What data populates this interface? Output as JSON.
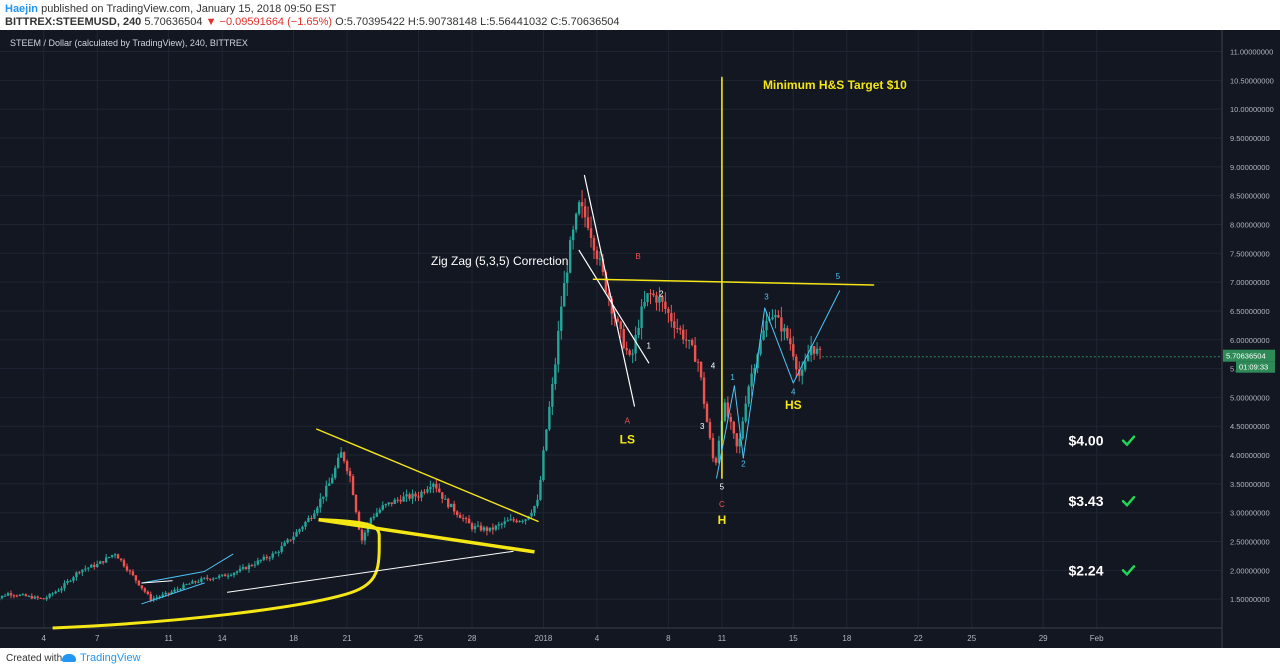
{
  "header": {
    "author": "Haejin",
    "published": "published on TradingView.com, January 15, 2018 09:50 EST",
    "symbol": "BITTREX:STEEMUSD, 240",
    "price": "5.70636504",
    "change": "−0.09591664 (−1.65%)",
    "ohlc": "O:5.70395422 H:5.90738148 L:5.56441032 C:5.70636504"
  },
  "chart_title": "STEEM / Dollar (calculated by TradingView), 240, BITTREX",
  "footer": {
    "created_with": "Created with",
    "brand": "TradingView"
  },
  "colors": {
    "background": "#131722",
    "up": "#26a69a",
    "down": "#ef5350",
    "yellow": "#f5e615",
    "cyan": "#4fc3f7",
    "white": "#ffffff",
    "check": "#1fd655"
  },
  "chart_data": {
    "type": "candlestick",
    "title": "STEEM / Dollar (calculated by TradingView), 240, BITTREX",
    "ylim": [
      1.0,
      11.2
    ],
    "y_ticks": [
      "11.00000000",
      "10.50000000",
      "10.00000000",
      "9.50000000",
      "9.00000000",
      "8.50000000",
      "8.00000000",
      "7.50000000",
      "7.00000000",
      "6.50000000",
      "6.00000000",
      "5.50000000",
      "5.00000000",
      "4.50000000",
      "4.00000000",
      "3.50000000",
      "3.00000000",
      "2.50000000",
      "2.00000000",
      "1.50000000"
    ],
    "y_tick_values": [
      11.0,
      10.5,
      10.0,
      9.5,
      9.0,
      8.5,
      8.0,
      7.5,
      7.0,
      6.5,
      6.0,
      5.5,
      5.0,
      4.5,
      4.0,
      3.5,
      3.0,
      2.5,
      2.0,
      1.5
    ],
    "x_ticks": [
      "4",
      "7",
      "11",
      "14",
      "18",
      "21",
      "25",
      "28",
      "2018",
      "4",
      "8",
      "11",
      "15",
      "18",
      "22",
      "25",
      "29",
      "Feb"
    ],
    "x_tick_days": [
      4,
      7,
      11,
      14,
      18,
      21,
      25,
      28,
      32,
      35,
      39,
      42,
      46,
      49,
      53,
      56,
      60,
      63
    ],
    "last_price": "5.70636504",
    "countdown": "01:09:33",
    "price_path": [
      [
        1,
        1.45
      ],
      [
        2,
        1.6
      ],
      [
        3,
        1.55
      ],
      [
        4,
        1.5
      ],
      [
        5,
        1.7
      ],
      [
        6,
        2.0
      ],
      [
        7,
        2.1
      ],
      [
        8,
        2.3
      ],
      [
        9,
        1.9
      ],
      [
        10,
        1.5
      ],
      [
        11,
        1.6
      ],
      [
        12,
        1.75
      ],
      [
        13,
        1.85
      ],
      [
        14,
        1.9
      ],
      [
        15,
        2.0
      ],
      [
        16,
        2.15
      ],
      [
        17,
        2.3
      ],
      [
        18,
        2.6
      ],
      [
        19,
        2.95
      ],
      [
        20,
        3.5
      ],
      [
        20.7,
        4.05
      ],
      [
        21.2,
        3.6
      ],
      [
        21.8,
        2.5
      ],
      [
        22.3,
        2.9
      ],
      [
        23,
        3.1
      ],
      [
        24,
        3.25
      ],
      [
        25,
        3.3
      ],
      [
        25.8,
        3.55
      ],
      [
        26.5,
        3.2
      ],
      [
        27,
        3.05
      ],
      [
        28,
        2.75
      ],
      [
        29,
        2.7
      ],
      [
        30,
        2.85
      ],
      [
        31,
        2.9
      ],
      [
        31.7,
        3.2
      ],
      [
        32.1,
        4.3
      ],
      [
        32.6,
        5.4
      ],
      [
        33,
        6.6
      ],
      [
        33.5,
        7.6
      ],
      [
        34,
        8.3
      ],
      [
        34.5,
        8.05
      ],
      [
        35,
        7.5
      ],
      [
        35.6,
        6.8
      ],
      [
        36.2,
        6.2
      ],
      [
        36.9,
        5.6
      ],
      [
        37.4,
        6.4
      ],
      [
        37.9,
        6.8
      ],
      [
        38.5,
        6.7
      ],
      [
        39.2,
        6.35
      ],
      [
        40,
        6.0
      ],
      [
        40.7,
        5.6
      ],
      [
        41.1,
        4.7
      ],
      [
        41.6,
        3.75
      ],
      [
        42.1,
        4.9
      ],
      [
        42.5,
        4.5
      ],
      [
        42.9,
        4.05
      ],
      [
        43.4,
        5.1
      ],
      [
        44,
        5.8
      ],
      [
        44.7,
        6.5
      ],
      [
        45.3,
        6.25
      ],
      [
        45.9,
        5.9
      ],
      [
        46.4,
        5.3
      ],
      [
        47,
        5.9
      ],
      [
        47.6,
        5.7
      ]
    ],
    "annotations": {
      "target_text": "Minimum H&S Target $10",
      "zigzag_text": "Zig Zag (5,3,5) Correction",
      "labels": [
        {
          "text": "B",
          "day": 37.3,
          "price": 7.4,
          "color": "down"
        },
        {
          "text": "A",
          "day": 36.7,
          "price": 4.55,
          "color": "down"
        },
        {
          "text": "LS",
          "day": 36.7,
          "price": 4.2,
          "color": "yellow",
          "bold": true
        },
        {
          "text": "1",
          "day": 37.9,
          "price": 5.85,
          "color": "white"
        },
        {
          "text": "2",
          "day": 38.6,
          "price": 6.75,
          "color": "white"
        },
        {
          "text": "3",
          "day": 40.9,
          "price": 4.45,
          "color": "white"
        },
        {
          "text": "4",
          "day": 41.5,
          "price": 5.5,
          "color": "white"
        },
        {
          "text": "5",
          "day": 42.0,
          "price": 3.4,
          "color": "white"
        },
        {
          "text": "C",
          "day": 42.0,
          "price": 3.1,
          "color": "down"
        },
        {
          "text": "H",
          "day": 42.0,
          "price": 2.8,
          "color": "yellow",
          "bold": true
        },
        {
          "text": "1",
          "day": 42.6,
          "price": 5.3,
          "color": "cyan"
        },
        {
          "text": "2",
          "day": 43.2,
          "price": 3.8,
          "color": "cyan"
        },
        {
          "text": "3",
          "day": 44.5,
          "price": 6.7,
          "color": "cyan"
        },
        {
          "text": "4",
          "day": 46.0,
          "price": 5.05,
          "color": "cyan"
        },
        {
          "text": "HS",
          "day": 46.0,
          "price": 4.8,
          "color": "yellow",
          "bold": true
        },
        {
          "text": "5",
          "day": 48.5,
          "price": 7.05,
          "color": "cyan"
        }
      ],
      "price_levels": [
        {
          "text": "$4.00",
          "price": 4.25
        },
        {
          "text": "$3.43",
          "price": 3.2
        },
        {
          "text": "$2.24",
          "price": 2.0
        }
      ]
    }
  }
}
